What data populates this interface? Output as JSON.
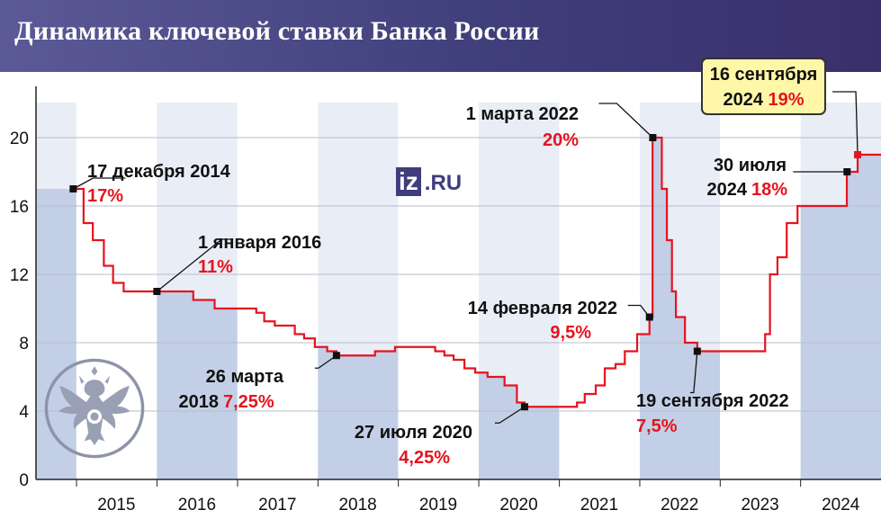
{
  "title": "Динамика ключевой ставки Банка России",
  "logo": {
    "main": "iz",
    "suffix": ".RU"
  },
  "callout": {
    "line1": "16 сентября",
    "line2_black": "2024",
    "line2_red": "19%"
  },
  "colors": {
    "line": "#e5141f",
    "band": "#c3cfe6",
    "band_light": "#e9edf6",
    "header": "#4a4a88",
    "text": "#111111",
    "highlight": "#e5141f"
  },
  "chart_data": {
    "type": "line",
    "title": "Динамика ключевой ставки Банка России",
    "xlabel": "",
    "ylabel": "",
    "ylim": [
      0,
      23
    ],
    "xlim": [
      "2014-07-01",
      "2024-12-31"
    ],
    "yticks": [
      "0",
      "4",
      "8",
      "12",
      "16",
      "20"
    ],
    "xticks": [
      "2015",
      "2016",
      "2017",
      "2018",
      "2019",
      "2020",
      "2021",
      "2022",
      "2023",
      "2024"
    ],
    "grid": true,
    "series": [
      {
        "x": [
          "2014-12-17",
          "2015-02-02",
          "2015-03-16",
          "2015-05-05",
          "2015-06-16",
          "2015-08-03",
          "2016-06-14",
          "2016-09-19",
          "2017-03-27",
          "2017-05-02",
          "2017-06-19",
          "2017-09-18",
          "2017-10-30",
          "2017-12-18",
          "2018-02-12",
          "2018-03-26",
          "2018-09-17",
          "2018-12-17",
          "2019-06-17",
          "2019-07-29",
          "2019-09-09",
          "2019-10-28",
          "2019-12-16",
          "2020-02-10",
          "2020-04-27",
          "2020-06-22",
          "2020-07-27",
          "2021-03-22",
          "2021-04-26",
          "2021-06-15",
          "2021-07-26",
          "2021-09-13",
          "2021-10-25",
          "2021-12-20",
          "2022-02-14",
          "2022-02-28",
          "2022-04-11",
          "2022-05-04",
          "2022-05-27",
          "2022-06-14",
          "2022-07-25",
          "2022-09-19",
          "2023-07-24",
          "2023-08-15",
          "2023-09-18",
          "2023-10-30",
          "2023-12-18",
          "2024-07-29",
          "2024-09-16"
        ],
        "values": [
          17,
          15,
          14,
          12.5,
          11.5,
          11,
          10.5,
          10,
          9.75,
          9.25,
          9,
          8.5,
          8.25,
          7.75,
          7.5,
          7.25,
          7.5,
          7.75,
          7.5,
          7.25,
          7,
          6.5,
          6.25,
          6,
          5.5,
          4.5,
          4.25,
          4.5,
          5,
          5.5,
          6.5,
          6.75,
          7.5,
          8.5,
          9.5,
          20,
          17,
          14,
          11,
          9.5,
          8,
          7.5,
          8.5,
          12,
          13,
          15,
          16,
          18,
          19
        ]
      }
    ],
    "annotations": [
      {
        "x": "2014-12-17",
        "value": 17,
        "date_label": "17 декабря 2014",
        "value_label": "17%"
      },
      {
        "x": "2016-01-01",
        "value": 11,
        "date_label": "1 января 2016",
        "value_label": "11%"
      },
      {
        "x": "2018-03-26",
        "value": 7.25,
        "date_label": "26 марта",
        "year_label": "2018",
        "value_label": "7,25%"
      },
      {
        "x": "2020-07-27",
        "value": 4.25,
        "date_label": "27 июля 2020",
        "value_label": "4,25%"
      },
      {
        "x": "2022-02-14",
        "value": 9.5,
        "date_label": "14 февраля 2022",
        "value_label": "9,5%"
      },
      {
        "x": "2022-03-01",
        "value": 20,
        "date_label": "1 марта 2022",
        "value_label": "20%"
      },
      {
        "x": "2022-09-19",
        "value": 7.5,
        "date_label": "19 сентября 2022",
        "value_label": "7,5%"
      },
      {
        "x": "2024-07-30",
        "value": 18,
        "date_label": "30 июля",
        "year_label": "2024",
        "value_label": "18%"
      },
      {
        "x": "2024-09-16",
        "value": 19,
        "date_label": "16 сентября",
        "year_label": "2024",
        "value_label": "19%"
      }
    ]
  }
}
